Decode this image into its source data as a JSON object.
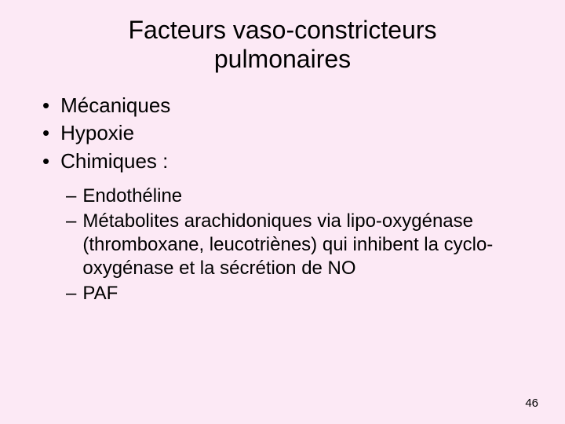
{
  "background_color": "#fce9f5",
  "text_color": "#000000",
  "title": {
    "line1": "Facteurs vaso-constricteurs",
    "line2": "pulmonaires",
    "fontsize": 32
  },
  "main_bullets": {
    "items": [
      "Mécaniques",
      "Hypoxie",
      "Chimiques :"
    ],
    "bullet_char": "•",
    "fontsize": 26
  },
  "sub_bullets": {
    "items": [
      "Endothéline",
      "Métabolites arachidoniques via lipo-oxygénase (thromboxane, leucotriènes) qui inhibent la cyclo-oxygénase et la sécrétion de NO",
      "PAF"
    ],
    "dash_char": "–",
    "fontsize": 24
  },
  "page_number": "46",
  "page_number_fontsize": 15
}
